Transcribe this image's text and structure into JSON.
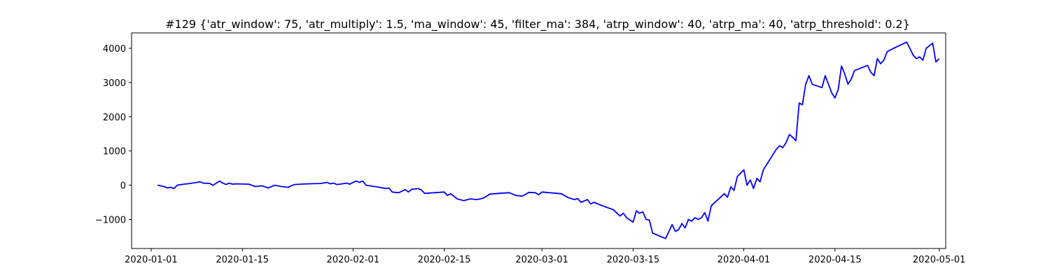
{
  "chart_data": {
    "type": "line",
    "title": "#129 {'atr_window': 75, 'atr_multiply': 1.5, 'ma_window': 45, 'filter_ma': 384, 'atrp_window': 40, 'atrp_ma': 40, 'atrp_threshold': 0.2}",
    "xlabel": "",
    "ylabel": "",
    "x_type": "date",
    "xlim": [
      "2019-12-29",
      "2020-05-02"
    ],
    "ylim": [
      -1850,
      4450
    ],
    "x_ticks": [
      "2020-01-01",
      "2020-01-15",
      "2020-02-01",
      "2020-02-15",
      "2020-03-01",
      "2020-03-15",
      "2020-04-01",
      "2020-04-15",
      "2020-05-01"
    ],
    "y_ticks": [
      -1000,
      0,
      1000,
      2000,
      3000,
      4000
    ],
    "y_tick_labels": [
      "−1000",
      "0",
      "1000",
      "2000",
      "3000",
      "4000"
    ],
    "grid": false,
    "line_color": "#0000ff",
    "series": [
      {
        "points": [
          [
            "2020-01-02",
            0
          ],
          [
            "2020-01-02T12",
            -20
          ],
          [
            "2020-01-03",
            -40
          ],
          [
            "2020-01-03T12",
            -80
          ],
          [
            "2020-01-04",
            -60
          ],
          [
            "2020-01-04T12",
            -100
          ],
          [
            "2020-01-05",
            0
          ],
          [
            "2020-01-06",
            30
          ],
          [
            "2020-01-07",
            50
          ],
          [
            "2020-01-08",
            80
          ],
          [
            "2020-01-08T12",
            100
          ],
          [
            "2020-01-09",
            60
          ],
          [
            "2020-01-10",
            50
          ],
          [
            "2020-01-10T12",
            0
          ],
          [
            "2020-01-11",
            60
          ],
          [
            "2020-01-11T12",
            120
          ],
          [
            "2020-01-12",
            60
          ],
          [
            "2020-01-12T12",
            20
          ],
          [
            "2020-01-13",
            60
          ],
          [
            "2020-01-13T12",
            30
          ],
          [
            "2020-01-14",
            40
          ],
          [
            "2020-01-16",
            30
          ],
          [
            "2020-01-17",
            -40
          ],
          [
            "2020-01-18",
            -20
          ],
          [
            "2020-01-19",
            -80
          ],
          [
            "2020-01-20",
            0
          ],
          [
            "2020-01-21",
            -40
          ],
          [
            "2020-01-22",
            -60
          ],
          [
            "2020-01-23",
            20
          ],
          [
            "2020-01-25",
            40
          ],
          [
            "2020-01-27",
            50
          ],
          [
            "2020-01-28",
            80
          ],
          [
            "2020-01-28T12",
            40
          ],
          [
            "2020-01-29",
            60
          ],
          [
            "2020-01-29T12",
            20
          ],
          [
            "2020-01-30",
            30
          ],
          [
            "2020-01-31",
            60
          ],
          [
            "2020-01-31T12",
            30
          ],
          [
            "2020-02-01",
            80
          ],
          [
            "2020-02-01T12",
            120
          ],
          [
            "2020-02-02",
            80
          ],
          [
            "2020-02-02T12",
            120
          ],
          [
            "2020-02-03",
            0
          ],
          [
            "2020-02-05",
            -60
          ],
          [
            "2020-02-06",
            -100
          ],
          [
            "2020-02-06T12",
            -80
          ],
          [
            "2020-02-07",
            -200
          ],
          [
            "2020-02-08",
            -220
          ],
          [
            "2020-02-09",
            -130
          ],
          [
            "2020-02-09T12",
            -200
          ],
          [
            "2020-02-10",
            -120
          ],
          [
            "2020-02-11",
            -100
          ],
          [
            "2020-02-11T12",
            -140
          ],
          [
            "2020-02-12",
            -240
          ],
          [
            "2020-02-15",
            -200
          ],
          [
            "2020-02-15T12",
            -300
          ],
          [
            "2020-02-16",
            -250
          ],
          [
            "2020-02-17",
            -400
          ],
          [
            "2020-02-18",
            -450
          ],
          [
            "2020-02-19",
            -400
          ],
          [
            "2020-02-20",
            -420
          ],
          [
            "2020-02-21",
            -380
          ],
          [
            "2020-02-22",
            -260
          ],
          [
            "2020-02-24",
            -230
          ],
          [
            "2020-02-25",
            -220
          ],
          [
            "2020-02-26",
            -300
          ],
          [
            "2020-02-27",
            -320
          ],
          [
            "2020-02-28",
            -210
          ],
          [
            "2020-02-29",
            -220
          ],
          [
            "2020-02-29T12",
            -280
          ],
          [
            "2020-03-01",
            -200
          ],
          [
            "2020-03-04",
            -250
          ],
          [
            "2020-03-05",
            -360
          ],
          [
            "2020-03-06",
            -420
          ],
          [
            "2020-03-06T12",
            -390
          ],
          [
            "2020-03-07",
            -500
          ],
          [
            "2020-03-08",
            -420
          ],
          [
            "2020-03-08T12",
            -550
          ],
          [
            "2020-03-09",
            -500
          ],
          [
            "2020-03-10",
            -580
          ],
          [
            "2020-03-12",
            -720
          ],
          [
            "2020-03-13",
            -900
          ],
          [
            "2020-03-13T12",
            -820
          ],
          [
            "2020-03-14",
            -950
          ],
          [
            "2020-03-15",
            -1080
          ],
          [
            "2020-03-15T12",
            -750
          ],
          [
            "2020-03-16",
            -820
          ],
          [
            "2020-03-16T12",
            -780
          ],
          [
            "2020-03-17",
            -1000
          ],
          [
            "2020-03-17T12",
            -1020
          ],
          [
            "2020-03-18",
            -1400
          ],
          [
            "2020-03-20",
            -1560
          ],
          [
            "2020-03-21",
            -1150
          ],
          [
            "2020-03-21T12",
            -1350
          ],
          [
            "2020-03-22",
            -1300
          ],
          [
            "2020-03-22T12",
            -1120
          ],
          [
            "2020-03-23",
            -1250
          ],
          [
            "2020-03-23T12",
            -1000
          ],
          [
            "2020-03-24",
            -1050
          ],
          [
            "2020-03-24T12",
            -950
          ],
          [
            "2020-03-25",
            -1000
          ],
          [
            "2020-03-25T12",
            -950
          ],
          [
            "2020-03-26",
            -800
          ],
          [
            "2020-03-26T12",
            -1050
          ],
          [
            "2020-03-27",
            -600
          ],
          [
            "2020-03-29",
            -250
          ],
          [
            "2020-03-29T12",
            -350
          ],
          [
            "2020-03-30",
            -50
          ],
          [
            "2020-03-30T12",
            -150
          ],
          [
            "2020-03-31",
            250
          ],
          [
            "2020-03-31T12",
            350
          ],
          [
            "2020-04-01",
            450
          ],
          [
            "2020-04-01T12",
            0
          ],
          [
            "2020-04-02",
            150
          ],
          [
            "2020-04-02T12",
            -100
          ],
          [
            "2020-04-03",
            200
          ],
          [
            "2020-04-03T12",
            100
          ],
          [
            "2020-04-04",
            450
          ],
          [
            "2020-04-06",
            1050
          ],
          [
            "2020-04-06T12",
            1150
          ],
          [
            "2020-04-07",
            1100
          ],
          [
            "2020-04-07T12",
            1250
          ],
          [
            "2020-04-08",
            1480
          ],
          [
            "2020-04-08T12",
            1400
          ],
          [
            "2020-04-09",
            1300
          ],
          [
            "2020-04-09T12",
            2400
          ],
          [
            "2020-04-10",
            2350
          ],
          [
            "2020-04-10T12",
            2950
          ],
          [
            "2020-04-11",
            3200
          ],
          [
            "2020-04-11T12",
            2950
          ],
          [
            "2020-04-13",
            2850
          ],
          [
            "2020-04-13T12",
            3200
          ],
          [
            "2020-04-14",
            2950
          ],
          [
            "2020-04-14T12",
            2700
          ],
          [
            "2020-04-15",
            2550
          ],
          [
            "2020-04-15T12",
            2800
          ],
          [
            "2020-04-16",
            3480
          ],
          [
            "2020-04-16T12",
            3250
          ],
          [
            "2020-04-17",
            2950
          ],
          [
            "2020-04-17T12",
            3100
          ],
          [
            "2020-04-18",
            3350
          ],
          [
            "2020-04-20",
            3500
          ],
          [
            "2020-04-20T12",
            3300
          ],
          [
            "2020-04-21",
            3200
          ],
          [
            "2020-04-21T12",
            3700
          ],
          [
            "2020-04-22",
            3550
          ],
          [
            "2020-04-22T12",
            3650
          ],
          [
            "2020-04-23",
            3900
          ],
          [
            "2020-04-23T12",
            3950
          ],
          [
            "2020-04-24",
            4000
          ],
          [
            "2020-04-26",
            4180
          ],
          [
            "2020-04-26T12",
            4000
          ],
          [
            "2020-04-27",
            3800
          ],
          [
            "2020-04-27T12",
            3700
          ],
          [
            "2020-04-28",
            3750
          ],
          [
            "2020-04-28T12",
            3650
          ],
          [
            "2020-04-29",
            4000
          ],
          [
            "2020-04-30",
            4150
          ],
          [
            "2020-04-30T12",
            3600
          ],
          [
            "2020-05-01",
            3700
          ]
        ]
      }
    ]
  }
}
